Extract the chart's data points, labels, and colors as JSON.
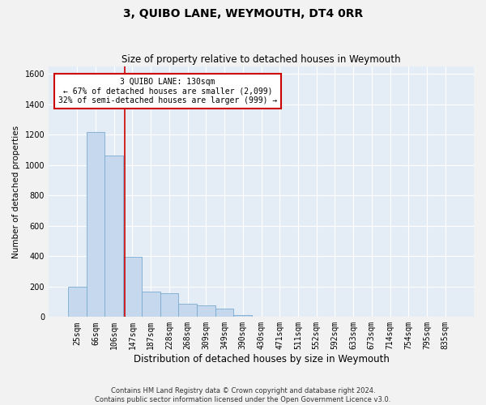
{
  "title": "3, QUIBO LANE, WEYMOUTH, DT4 0RR",
  "subtitle": "Size of property relative to detached houses in Weymouth",
  "xlabel": "Distribution of detached houses by size in Weymouth",
  "ylabel": "Number of detached properties",
  "categories": [
    "25sqm",
    "66sqm",
    "106sqm",
    "147sqm",
    "187sqm",
    "228sqm",
    "268sqm",
    "309sqm",
    "349sqm",
    "390sqm",
    "430sqm",
    "471sqm",
    "511sqm",
    "552sqm",
    "592sqm",
    "633sqm",
    "673sqm",
    "714sqm",
    "754sqm",
    "795sqm",
    "835sqm"
  ],
  "values": [
    200,
    1220,
    1065,
    395,
    168,
    155,
    85,
    75,
    55,
    15,
    0,
    0,
    0,
    0,
    0,
    0,
    0,
    0,
    0,
    0,
    0
  ],
  "bar_color": "#c5d8ed",
  "bar_edge_color": "#7aaacf",
  "plot_bg_color": "#e4edf6",
  "fig_bg_color": "#f2f2f2",
  "grid_color": "#ffffff",
  "vline_color": "#cc0000",
  "annotation_text": "3 QUIBO LANE: 130sqm\n← 67% of detached houses are smaller (2,099)\n32% of semi-detached houses are larger (999) →",
  "annotation_edge_color": "#cc0000",
  "ylim": [
    0,
    1650
  ],
  "yticks": [
    0,
    200,
    400,
    600,
    800,
    1000,
    1200,
    1400,
    1600
  ],
  "bin_edges_sqm": [
    25,
    66,
    106,
    147,
    187,
    228,
    268,
    309,
    349,
    390,
    430,
    471,
    511,
    552,
    592,
    633,
    673,
    714,
    754,
    795,
    835
  ],
  "property_sqm": 130,
  "footer_line1": "Contains HM Land Registry data © Crown copyright and database right 2024.",
  "footer_line2": "Contains public sector information licensed under the Open Government Licence v3.0."
}
